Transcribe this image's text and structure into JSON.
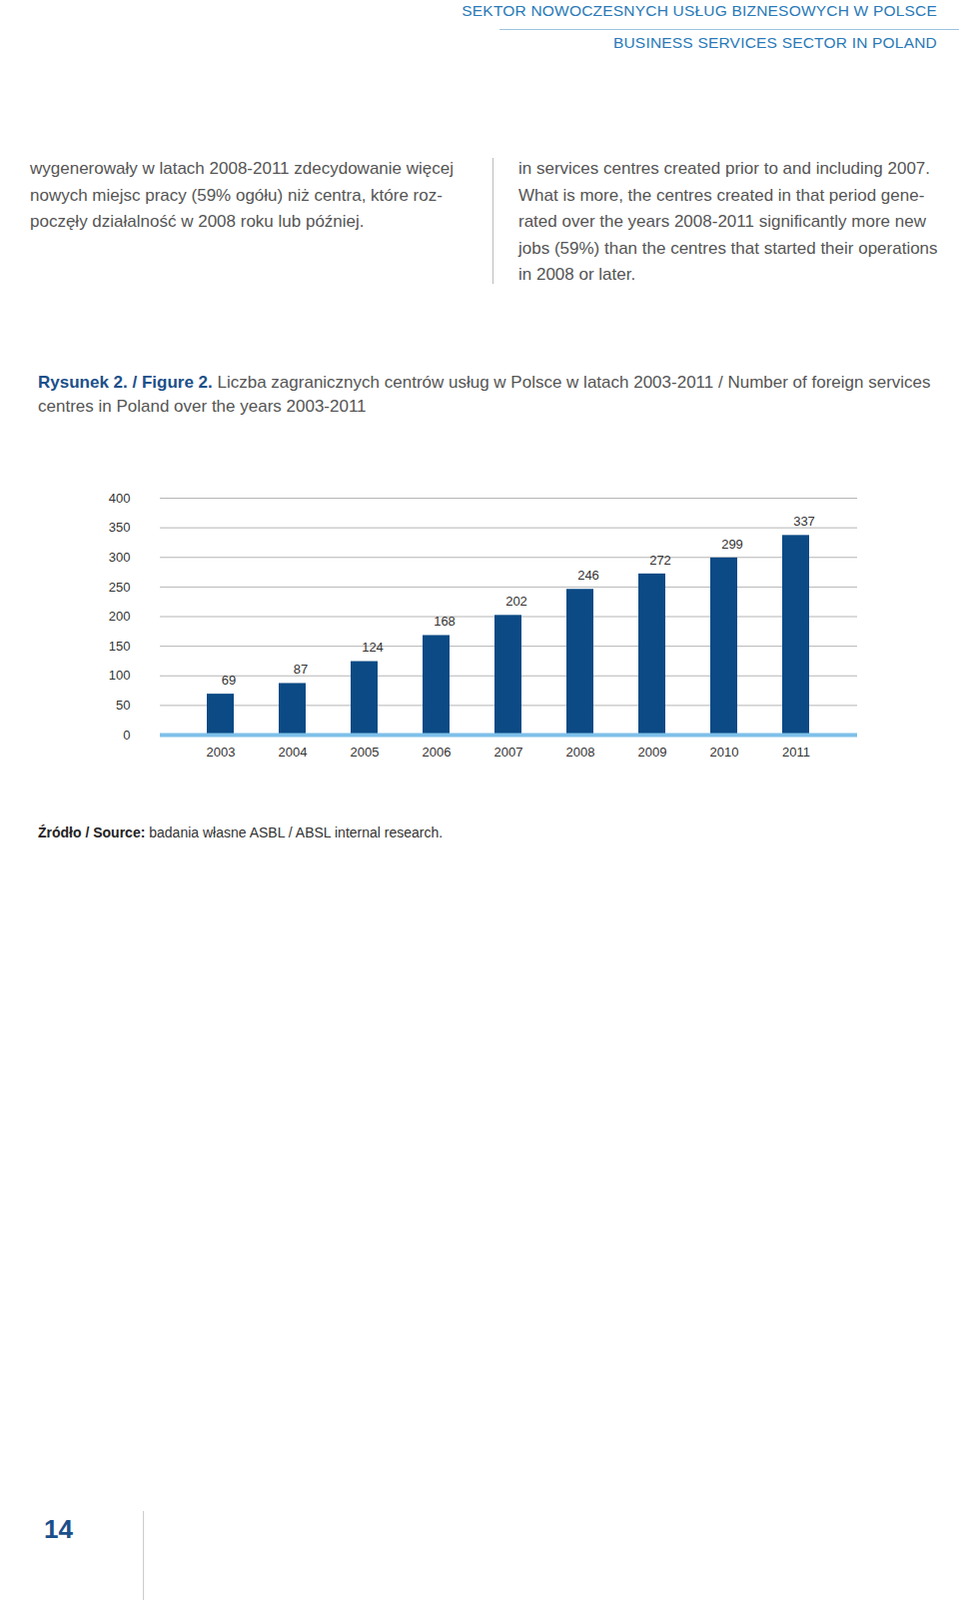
{
  "header": {
    "title": "SEKTOR NOWOCZESNYCH USŁUG BIZNESOWYCH W POLSCE",
    "subtitle": "BUSINESS SERVICES SECTOR IN POLAND"
  },
  "text": {
    "left": [
      "wygenerowały w latach 2008-2011 zdecydowanie więcej",
      "nowych miejsc pracy (59% ogółu) niż centra, które roz-",
      "poczęły działalność w 2008 roku lub później."
    ],
    "right": [
      "in services centres created prior to and including 2007.",
      "What is more, the centres created in that period gene-",
      "rated over the years 2008-2011 significantly more new",
      "jobs (59%) than the centres that started their operations",
      "in 2008 or later."
    ]
  },
  "figure": {
    "label": "Rysunek 2. / Figure 2.",
    "caption": "Liczba zagranicznych centrów usług w Polsce w latach 2003-2011 / Number of foreign services centres in Poland over the years 2003-2011"
  },
  "chart_data": {
    "type": "bar",
    "categories": [
      "2003",
      "2004",
      "2005",
      "2006",
      "2007",
      "2008",
      "2009",
      "2010",
      "2011"
    ],
    "values": [
      69,
      87,
      124,
      168,
      202,
      246,
      272,
      299,
      337
    ],
    "color": "#0b4a85",
    "ylim": [
      0,
      400
    ],
    "yticks": [
      0,
      50,
      100,
      150,
      200,
      250,
      300,
      350,
      400
    ],
    "grid": true,
    "data_labels": true
  },
  "source": {
    "label": "Źródło / Source:",
    "text": "badania własne ASBL / ABSL internal research."
  },
  "page_number": "14"
}
